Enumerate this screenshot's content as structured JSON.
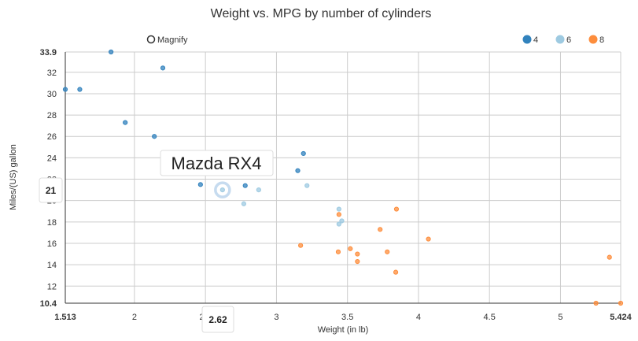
{
  "chart_data": {
    "type": "scatter",
    "title": "Weight vs. MPG by number of cylinders",
    "xlabel": "Weight (in lb)",
    "ylabel": "Miles/(US) gallon",
    "xlim": [
      1.513,
      5.424
    ],
    "ylim": [
      10.4,
      33.9
    ],
    "x_ticks": [
      "2",
      "2.5",
      "3",
      "3.5",
      "4",
      "4.5",
      "5"
    ],
    "y_ticks": [
      "12",
      "14",
      "16",
      "18",
      "20",
      "22",
      "24",
      "26",
      "28",
      "30",
      "32"
    ],
    "x_min_label": "1.513",
    "x_max_label": "5.424",
    "y_min_label": "10.4",
    "y_max_label": "33.9",
    "grid": true,
    "legend_position": "top-right",
    "magnify_label": "Magnify",
    "tooltip": {
      "text": "Mazda RX4",
      "x": 2.62,
      "y": 21
    },
    "crosshair_x_label": "2.62",
    "crosshair_y_label": "21",
    "series": [
      {
        "name": "4",
        "color": "#3182bd",
        "points": [
          [
            1.835,
            33.9
          ],
          [
            2.2,
            32.4
          ],
          [
            1.513,
            30.4
          ],
          [
            1.615,
            30.4
          ],
          [
            1.935,
            27.3
          ],
          [
            2.14,
            26.0
          ],
          [
            3.19,
            24.4
          ],
          [
            3.15,
            22.8
          ],
          [
            2.32,
            22.8
          ],
          [
            2.465,
            21.5
          ],
          [
            2.78,
            21.4
          ]
        ]
      },
      {
        "name": "6",
        "color": "#9ecae1",
        "points": [
          [
            2.62,
            21.0
          ],
          [
            2.875,
            21.0
          ],
          [
            3.215,
            21.4
          ],
          [
            2.77,
            19.7
          ],
          [
            3.44,
            19.2
          ],
          [
            3.46,
            18.1
          ],
          [
            3.44,
            17.8
          ]
        ]
      },
      {
        "name": "8",
        "color": "#fd8d3c",
        "points": [
          [
            3.44,
            18.7
          ],
          [
            3.845,
            19.2
          ],
          [
            3.73,
            17.3
          ],
          [
            4.07,
            16.4
          ],
          [
            3.17,
            15.8
          ],
          [
            3.52,
            15.5
          ],
          [
            3.78,
            15.2
          ],
          [
            3.435,
            15.2
          ],
          [
            3.57,
            15.0
          ],
          [
            3.57,
            14.3
          ],
          [
            5.345,
            14.7
          ],
          [
            3.84,
            13.3
          ],
          [
            5.25,
            10.4
          ],
          [
            5.424,
            10.4
          ]
        ]
      }
    ]
  }
}
